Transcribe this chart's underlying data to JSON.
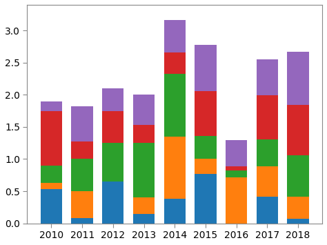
{
  "years": [
    2010,
    2011,
    2012,
    2013,
    2014,
    2015,
    2016,
    2017,
    2018
  ],
  "blue": [
    0.53,
    0.08,
    0.65,
    0.15,
    0.38,
    0.77,
    0.0,
    0.42,
    0.07
  ],
  "orange": [
    0.1,
    0.42,
    0.0,
    0.25,
    0.97,
    0.23,
    0.72,
    0.47,
    0.34
  ],
  "green": [
    0.27,
    0.5,
    0.6,
    0.85,
    0.98,
    0.36,
    0.1,
    0.42,
    0.65
  ],
  "red": [
    0.85,
    0.27,
    0.5,
    0.28,
    0.33,
    0.7,
    0.07,
    0.68,
    0.78
  ],
  "purple": [
    0.15,
    0.55,
    0.35,
    0.47,
    0.5,
    0.72,
    0.41,
    0.56,
    0.83
  ],
  "colors": [
    "#1f77b4",
    "#ff7f0e",
    "#2ca02c",
    "#d62728",
    "#9467bd"
  ],
  "ylim": [
    0,
    3.4
  ],
  "yticks": [
    0.0,
    0.5,
    1.0,
    1.5,
    2.0,
    2.5,
    3.0
  ],
  "bar_width": 0.7,
  "figsize": [
    4.74,
    3.55
  ],
  "dpi": 100
}
